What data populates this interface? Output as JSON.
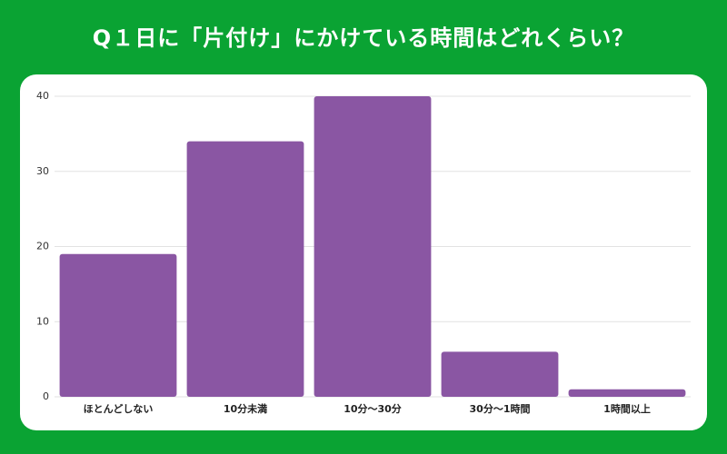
{
  "chart_data": {
    "type": "bar",
    "title": "Q１日に「片付け」にかけている時間はどれくらい？",
    "categories": [
      "ほとんどしない",
      "10分未満",
      "10分〜30分",
      "30分〜1時間",
      "1時間以上"
    ],
    "values": [
      19,
      34,
      40,
      6,
      1
    ],
    "color": "#8a56a3",
    "ylim": [
      0,
      40
    ],
    "yticks": [
      0,
      10,
      20,
      30,
      40
    ],
    "grid": true
  }
}
